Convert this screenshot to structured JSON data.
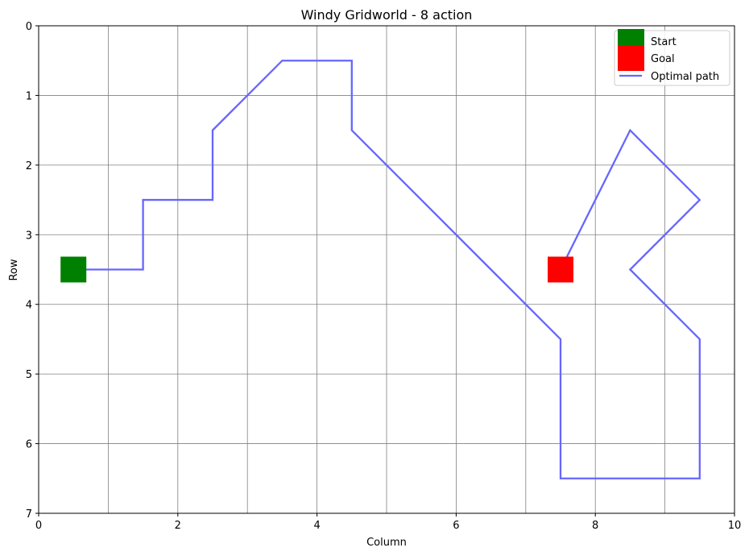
{
  "chart_data": {
    "type": "line",
    "title": "Windy Gridworld - 8 action",
    "xlabel": "Column",
    "ylabel": "Row",
    "xlim": [
      0,
      10
    ],
    "ylim": [
      7,
      0
    ],
    "y_inverted": true,
    "grid": true,
    "legend_position": "top-right",
    "xticks": [
      0,
      2,
      4,
      6,
      8,
      10
    ],
    "yticks": [
      0,
      1,
      2,
      3,
      4,
      5,
      6,
      7
    ],
    "grid_x": [
      0,
      1,
      2,
      3,
      4,
      5,
      6,
      7,
      8,
      9,
      10
    ],
    "grid_y": [
      0,
      1,
      2,
      3,
      4,
      5,
      6,
      7
    ],
    "start": {
      "label": "Start",
      "x": 0.5,
      "y": 3.5,
      "color": "#008000"
    },
    "goal": {
      "label": "Goal",
      "x": 7.5,
      "y": 3.5,
      "color": "#ff0000"
    },
    "series": [
      {
        "name": "Optimal path",
        "color": "#6666ff",
        "points": [
          [
            0.5,
            3.5
          ],
          [
            1.5,
            3.5
          ],
          [
            1.5,
            2.5
          ],
          [
            2.5,
            2.5
          ],
          [
            2.5,
            1.5
          ],
          [
            3.5,
            0.5
          ],
          [
            4.5,
            0.5
          ],
          [
            4.5,
            1.5
          ],
          [
            5.5,
            2.5
          ],
          [
            6.5,
            3.5
          ],
          [
            7.5,
            4.5
          ],
          [
            7.5,
            5.5
          ],
          [
            7.5,
            6.5
          ],
          [
            8.5,
            6.5
          ],
          [
            9.5,
            6.5
          ],
          [
            9.5,
            5.5
          ],
          [
            9.5,
            4.5
          ],
          [
            8.5,
            3.5
          ],
          [
            9.5,
            2.5
          ],
          [
            8.5,
            1.5
          ],
          [
            7.5,
            3.5
          ]
        ]
      }
    ]
  }
}
